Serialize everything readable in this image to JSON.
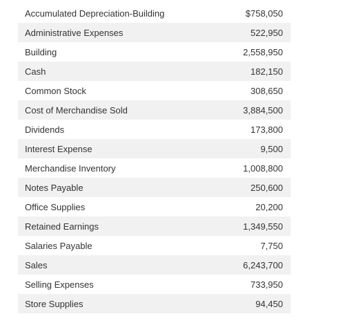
{
  "accounts": [
    {
      "name": "Accumulated Depreciation-Building",
      "amount": "$758,050"
    },
    {
      "name": "Administrative Expenses",
      "amount": "522,950"
    },
    {
      "name": "Building",
      "amount": "2,558,950"
    },
    {
      "name": "Cash",
      "amount": "182,150"
    },
    {
      "name": "Common Stock",
      "amount": "308,650"
    },
    {
      "name": "Cost of Merchandise Sold",
      "amount": "3,884,500"
    },
    {
      "name": "Dividends",
      "amount": "173,800"
    },
    {
      "name": "Interest Expense",
      "amount": "9,500"
    },
    {
      "name": "Merchandise Inventory",
      "amount": "1,008,800"
    },
    {
      "name": "Notes Payable",
      "amount": "250,600"
    },
    {
      "name": "Office Supplies",
      "amount": "20,200"
    },
    {
      "name": "Retained Earnings",
      "amount": "1,349,550"
    },
    {
      "name": "Salaries Payable",
      "amount": "7,750"
    },
    {
      "name": "Sales",
      "amount": "6,243,700"
    },
    {
      "name": "Selling Expenses",
      "amount": "733,950"
    },
    {
      "name": "Store Supplies",
      "amount": "94,450"
    }
  ]
}
